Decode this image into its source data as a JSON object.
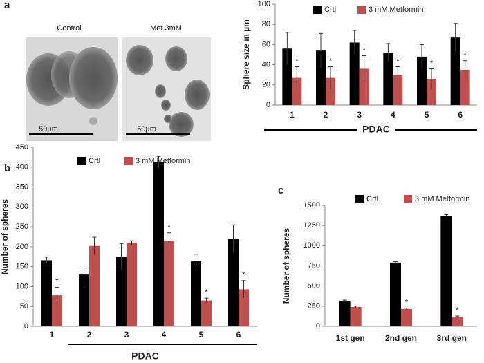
{
  "panel_labels": [
    "a",
    "b",
    "c"
  ],
  "images": [
    {
      "label": "Control",
      "scale": "50µm"
    },
    {
      "label": "Met 3mM",
      "scale": "50µm"
    }
  ],
  "chart_data": [
    {
      "type": "bar",
      "ylabel": "Sphere size in µm",
      "xlabel": "PDAC",
      "categories": [
        "1",
        "2",
        "3",
        "4",
        "5",
        "6"
      ],
      "series": [
        {
          "name": "Crtl",
          "color": "#000000",
          "values": [
            56,
            54,
            62,
            52,
            48,
            67
          ],
          "errors": [
            16,
            17,
            12,
            9,
            12,
            14
          ],
          "markers": [
            null,
            null,
            null,
            null,
            null,
            null
          ]
        },
        {
          "name": "3 mM Metformin",
          "color": "#c0504d",
          "values": [
            27,
            27,
            36,
            30,
            26,
            35
          ],
          "errors": [
            11,
            11,
            13,
            8,
            10,
            9
          ],
          "markers": [
            "*",
            "*",
            "*",
            "*",
            "*",
            "*"
          ]
        }
      ],
      "ylim": [
        0,
        100
      ],
      "yticks": [
        0,
        20,
        40,
        60,
        80,
        100
      ],
      "legend": "top"
    },
    {
      "type": "bar",
      "ylabel": "Number of spheres",
      "xlabel": "PDAC",
      "categories": [
        "1",
        "2",
        "3",
        "4",
        "5",
        "6"
      ],
      "series": [
        {
          "name": "Crtl",
          "color": "#000000",
          "values": [
            166,
            130,
            175,
            412,
            165,
            220
          ],
          "errors": [
            8,
            22,
            33,
            15,
            16,
            35
          ],
          "markers": [
            null,
            null,
            null,
            null,
            null,
            null
          ]
        },
        {
          "name": "3 mM Metformin",
          "color": "#c0504d",
          "values": [
            78,
            202,
            210,
            215,
            65,
            93
          ],
          "errors": [
            20,
            22,
            5,
            20,
            6,
            22
          ],
          "markers": [
            "*",
            null,
            null,
            "*",
            "*",
            "*"
          ]
        }
      ],
      "ylim": [
        0,
        450
      ],
      "yticks": [
        0,
        50,
        100,
        150,
        200,
        250,
        300,
        350,
        400,
        450
      ],
      "legend": "top"
    },
    {
      "type": "bar",
      "ylabel": "Number of spheres",
      "categories": [
        "1st gen",
        "2nd gen",
        "3rd gen"
      ],
      "series": [
        {
          "name": "Crtl",
          "color": "#000000",
          "values": [
            315,
            790,
            1370
          ],
          "errors": [
            10,
            12,
            15
          ],
          "markers": [
            null,
            null,
            null
          ]
        },
        {
          "name": "3 mM Metformin",
          "color": "#c0504d",
          "values": [
            240,
            215,
            120
          ],
          "errors": [
            10,
            10,
            8
          ],
          "markers": [
            null,
            "*",
            "*"
          ]
        }
      ],
      "ylim": [
        0,
        1500
      ],
      "yticks": [
        0,
        250,
        500,
        750,
        1000,
        1250,
        1500
      ],
      "legend": "top"
    }
  ]
}
